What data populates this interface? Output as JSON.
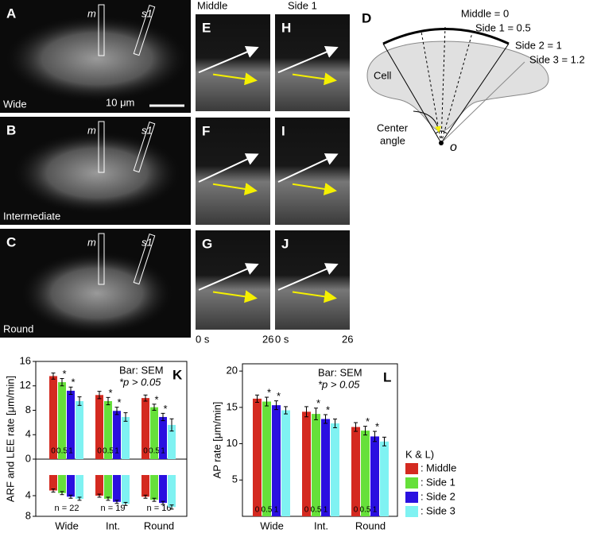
{
  "panels": {
    "images": [
      {
        "letter": "A",
        "caption": "Wide"
      },
      {
        "letter": "B",
        "caption": "Intermediate"
      },
      {
        "letter": "C",
        "caption": "Round"
      }
    ],
    "roi_labels": [
      "m",
      "s1"
    ],
    "scale_bar": "10 μm",
    "kymographs": {
      "columns": [
        "Middle",
        "Side 1"
      ],
      "letters": [
        [
          "E",
          "H"
        ],
        [
          "F",
          "I"
        ],
        [
          "G",
          "J"
        ]
      ],
      "time_start": "0 s",
      "time_end": "26"
    },
    "diagram": {
      "letter": "D",
      "labels": [
        "Middle = 0",
        "Side 1 = 0.5",
        "Side 2 = 1",
        "Side 3 = 1.2"
      ],
      "cell": "Cell",
      "center_angle": [
        "Center",
        "angle"
      ],
      "origin": "o"
    }
  },
  "legend": {
    "title": "K & L)",
    "separator": ":"
  },
  "chart_data": [
    {
      "type": "bar",
      "panel": "K",
      "ylabel": "ARF and LEE rate [μm/min]",
      "categories": [
        "Wide",
        "Int.",
        "Round"
      ],
      "bar_labels": [
        "0",
        "0.5",
        "1"
      ],
      "sample_sizes": [
        "n = 22",
        "n = 19",
        "n = 16"
      ],
      "annotation": "Bar: SEM",
      "note": "*p > 0.05",
      "significance_mark": "*",
      "ylim": [
        0,
        16
      ],
      "yticks": [
        0,
        4,
        8,
        12,
        16
      ],
      "lower_ylim": [
        0,
        8
      ],
      "lower_yticks": [
        4,
        8
      ],
      "series": [
        {
          "name": "Middle",
          "color": "#d42a20",
          "values": [
            13.6,
            10.5,
            10.0
          ],
          "errors": [
            0.5,
            0.6,
            0.5
          ],
          "lower_values": [
            3.0,
            4.0,
            4.2
          ],
          "lower_errors": [
            0.3,
            0.3,
            0.3
          ]
        },
        {
          "name": "Side 1",
          "color": "#66e03a",
          "values": [
            12.6,
            9.5,
            8.5
          ],
          "errors": [
            0.6,
            0.6,
            0.5
          ],
          "lower_values": [
            3.5,
            4.6,
            4.8
          ],
          "lower_errors": [
            0.3,
            0.3,
            0.3
          ]
        },
        {
          "name": "Side 2",
          "color": "#2a10e0",
          "values": [
            11.2,
            7.9,
            6.9
          ],
          "errors": [
            0.6,
            0.6,
            0.6
          ],
          "lower_values": [
            4.2,
            5.2,
            5.4
          ],
          "lower_errors": [
            0.3,
            0.3,
            0.3
          ]
        },
        {
          "name": "Side 3",
          "color": "#7ff2f2",
          "values": [
            9.5,
            6.9,
            5.6
          ],
          "errors": [
            0.7,
            0.7,
            1.0
          ],
          "lower_values": [
            4.6,
            5.6,
            6.2
          ],
          "lower_errors": [
            0.3,
            0.3,
            0.4
          ]
        }
      ]
    },
    {
      "type": "bar",
      "panel": "L",
      "ylabel": "AP rate [μm/min]",
      "categories": [
        "Wide",
        "Int.",
        "Round"
      ],
      "bar_labels": [
        "0",
        "0.5",
        "1"
      ],
      "annotation": "Bar: SEM",
      "note": "*p > 0.05",
      "significance_mark": "*",
      "ylim": [
        0,
        21
      ],
      "yticks": [
        5,
        10,
        15,
        20
      ],
      "series": [
        {
          "name": "Middle",
          "color": "#d42a20",
          "values": [
            16.2,
            14.4,
            12.3
          ],
          "errors": [
            0.5,
            0.7,
            0.6
          ]
        },
        {
          "name": "Side 1",
          "color": "#66e03a",
          "values": [
            15.8,
            14.1,
            11.8
          ],
          "errors": [
            0.6,
            0.8,
            0.6
          ]
        },
        {
          "name": "Side 2",
          "color": "#2a10e0",
          "values": [
            15.3,
            13.4,
            11.0
          ],
          "errors": [
            0.6,
            0.6,
            0.7
          ]
        },
        {
          "name": "Side 3",
          "color": "#7ff2f2",
          "values": [
            14.6,
            12.8,
            10.3
          ],
          "errors": [
            0.5,
            0.6,
            0.6
          ]
        }
      ]
    }
  ]
}
